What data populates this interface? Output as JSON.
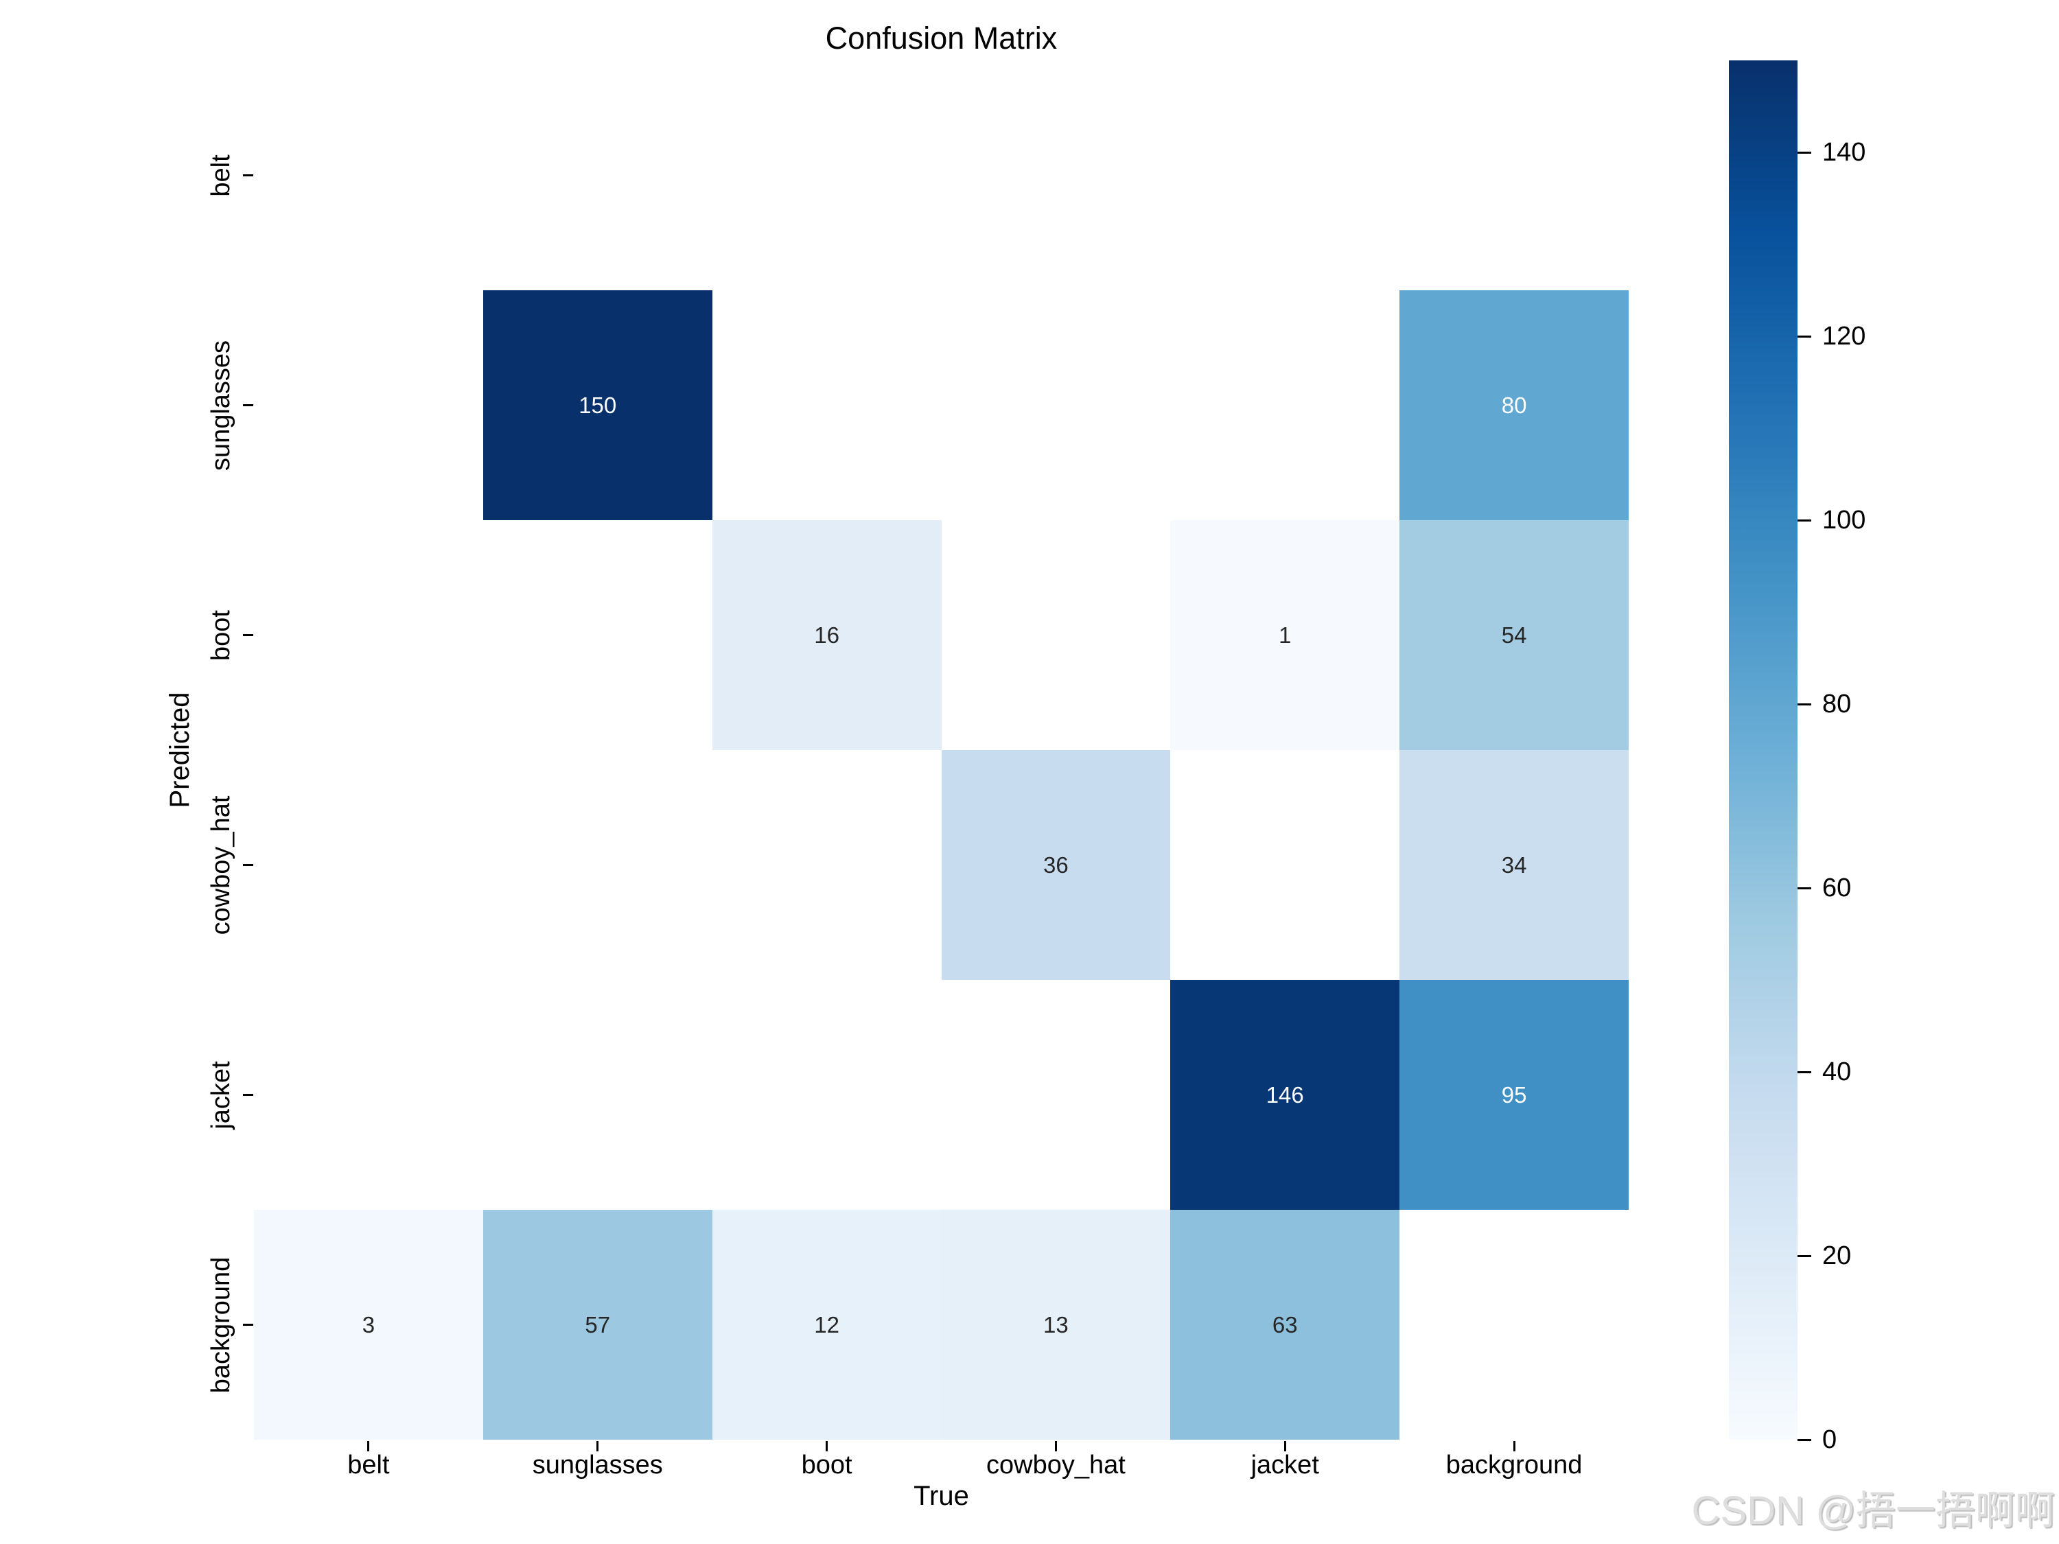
{
  "chart_data": {
    "type": "heatmap",
    "title": "Confusion Matrix",
    "xlabel": "True",
    "ylabel": "Predicted",
    "x_categories": [
      "belt",
      "sunglasses",
      "boot",
      "cowboy_hat",
      "jacket",
      "background"
    ],
    "y_categories": [
      "belt",
      "sunglasses",
      "boot",
      "cowboy_hat",
      "jacket",
      "background"
    ],
    "matrix": [
      [
        null,
        null,
        null,
        null,
        null,
        null
      ],
      [
        null,
        150,
        null,
        null,
        null,
        80
      ],
      [
        null,
        null,
        16,
        null,
        1,
        54
      ],
      [
        null,
        null,
        null,
        36,
        null,
        34
      ],
      [
        null,
        null,
        null,
        null,
        146,
        95
      ],
      [
        3,
        57,
        12,
        13,
        63,
        null
      ]
    ],
    "vmin": 0,
    "vmax": 150,
    "colorbar_ticks": [
      0,
      20,
      40,
      60,
      80,
      100,
      120,
      140
    ],
    "colormap": {
      "name": "Blues",
      "anchors": [
        [
          0.0,
          "#f7fbff"
        ],
        [
          0.125,
          "#deebf7"
        ],
        [
          0.25,
          "#c6dbef"
        ],
        [
          0.375,
          "#9ecae1"
        ],
        [
          0.5,
          "#6baed6"
        ],
        [
          0.625,
          "#4292c6"
        ],
        [
          0.75,
          "#2171b5"
        ],
        [
          0.875,
          "#08519c"
        ],
        [
          1.0,
          "#08306b"
        ]
      ]
    },
    "empty_cell_color": "#ffffff",
    "annotation_dark_color": "#262626",
    "annotation_light_color": "#ffffff",
    "legend_position": "right-colorbar",
    "grid": false
  },
  "watermark": {
    "text": "CSDN @捂一捂啊啊"
  }
}
